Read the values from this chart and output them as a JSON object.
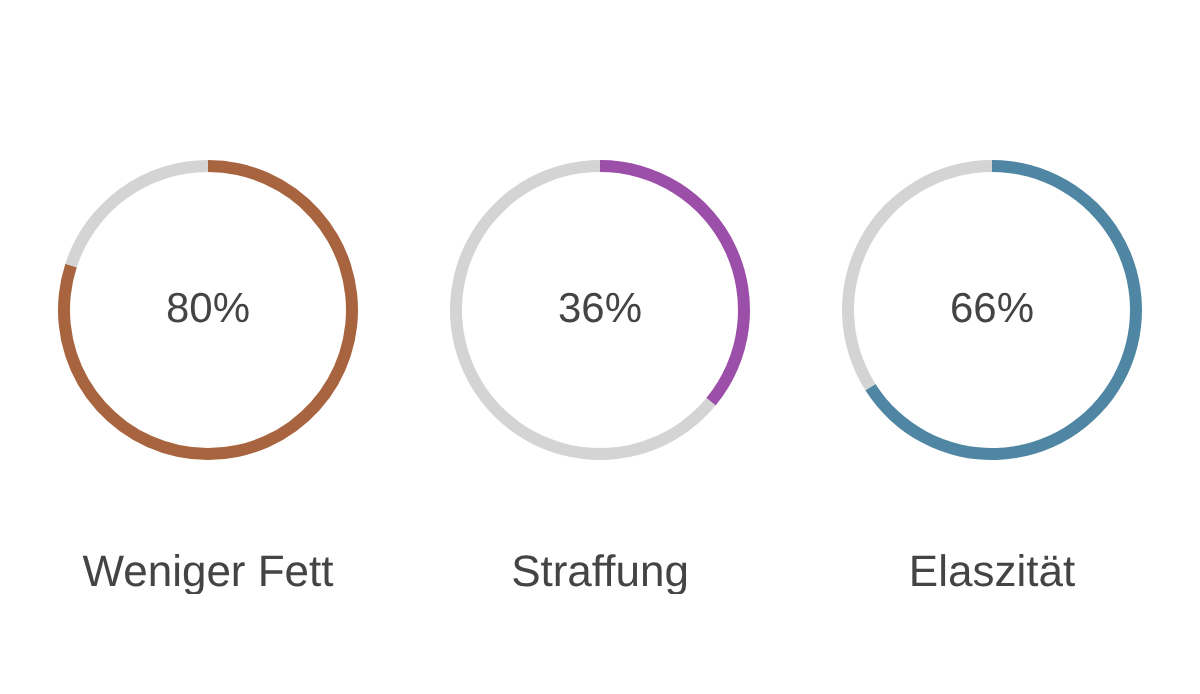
{
  "chart_data": [
    {
      "type": "donut",
      "title": "Weniger Fett",
      "categories": [
        null,
        null
      ],
      "values": [
        80,
        20
      ],
      "colors": [
        "#a8633f",
        "#d4d4d4"
      ],
      "annotations": [
        "80%"
      ]
    },
    {
      "type": "donut",
      "title": "Straffung",
      "categories": [
        null,
        null
      ],
      "values": [
        36,
        64
      ],
      "colors": [
        "#9b4fa8",
        "#d4d4d4"
      ],
      "annotations": [
        "36%"
      ]
    },
    {
      "type": "donut",
      "title": "Elaszität",
      "categories": [
        null,
        null
      ],
      "values": [
        66,
        34
      ],
      "colors": [
        "#4f86a3",
        "#d4d4d4"
      ],
      "annotations": [
        "66%"
      ]
    }
  ]
}
